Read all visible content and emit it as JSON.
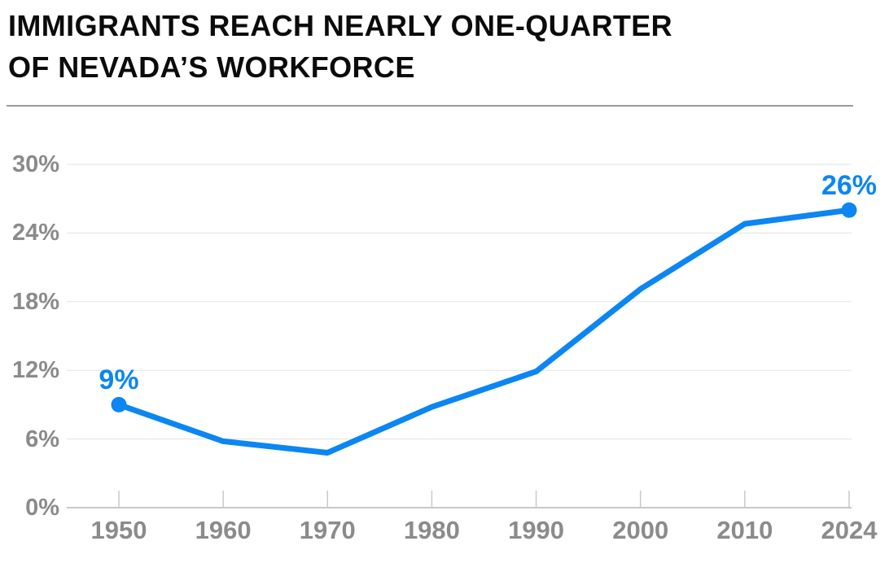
{
  "header": {
    "title": "IMMIGRANTS REACH NEARLY ONE-QUARTER OF NEVADA’S WORKFORCE",
    "title_line1": "IMMIGRANTS REACH NEARLY ONE-QUARTER",
    "title_line2": "OF NEVADA’S WORKFORCE"
  },
  "chart_data": {
    "type": "line",
    "title": "IMMIGRANTS REACH NEARLY ONE-QUARTER OF NEVADA’S WORKFORCE",
    "categories": [
      "1950",
      "1960",
      "1970",
      "1980",
      "1990",
      "2000",
      "2010",
      "2024"
    ],
    "values": [
      9,
      5.8,
      4.8,
      8.8,
      11.9,
      19.1,
      24.8,
      26
    ],
    "annotations": [
      {
        "index": 0,
        "label": "9%"
      },
      {
        "index": 7,
        "label": "26%"
      }
    ],
    "yticks": [
      0,
      6,
      12,
      18,
      24,
      30
    ],
    "ytick_labels": [
      "0%",
      "6%",
      "12%",
      "18%",
      "24%",
      "30%"
    ],
    "ylim": [
      0,
      30
    ],
    "xlabel": "",
    "ylabel": "",
    "grid": "horizontal gridlines on",
    "legend": "none",
    "markers": "endpoint dots only",
    "colors": {
      "line": "#0b86f2",
      "point_label": "#0b86f2",
      "tick_text": "#8b8b8b",
      "gridline": "#e3e3e3",
      "axis": "#c9c9c9",
      "title_text": "#0b0b0b",
      "divider": "#9b9b9b",
      "background": "#ffffff"
    }
  }
}
